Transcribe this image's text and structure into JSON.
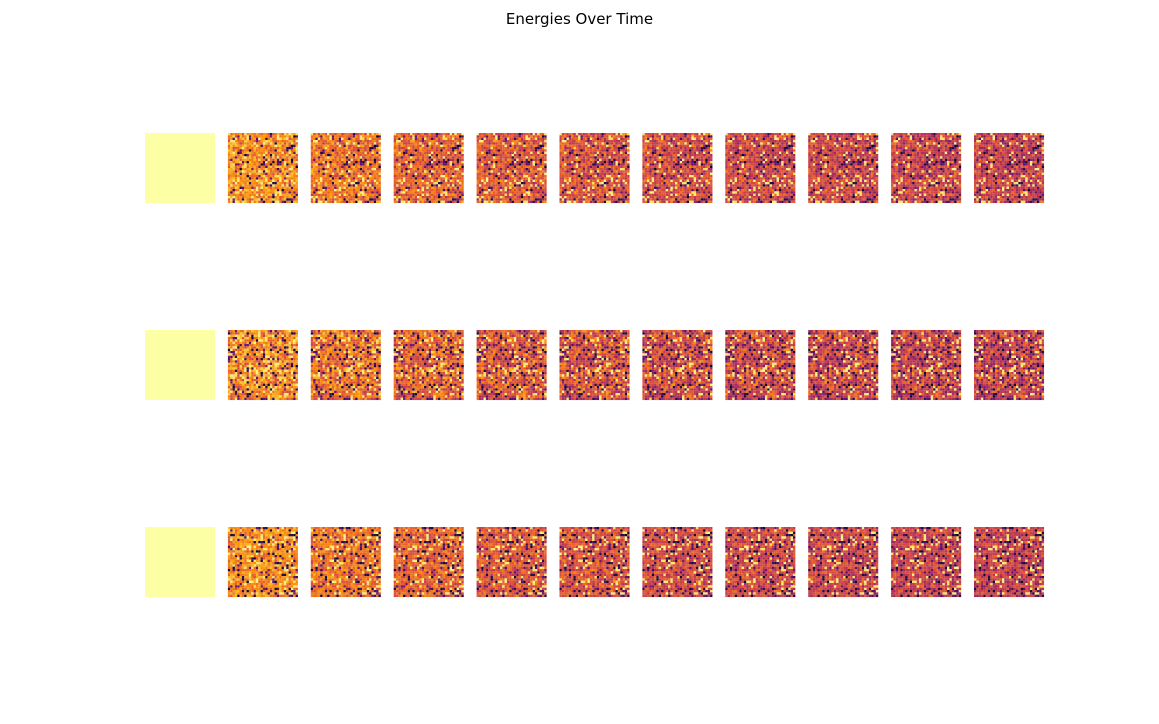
{
  "figure": {
    "title": "Energies Over Time"
  },
  "chart_data": {
    "type": "heatmap",
    "title": "Energies Over Time",
    "layout": "3 rows x 11 time steps of 30x30 lattice energy maps",
    "rows": 3,
    "time_steps": 11,
    "lattice_size": 30,
    "colormap": "inferno",
    "axes_visible": false,
    "grid": false,
    "legend": "none",
    "initial_state": "uniform high energy (all cells at colormap maximum)",
    "mean_level_per_step": [
      1.0,
      0.74,
      0.68,
      0.64,
      0.61,
      0.59,
      0.57,
      0.56,
      0.55,
      0.54,
      0.53
    ],
    "row_noise_profile": [
      "medium",
      "high",
      "low"
    ]
  }
}
